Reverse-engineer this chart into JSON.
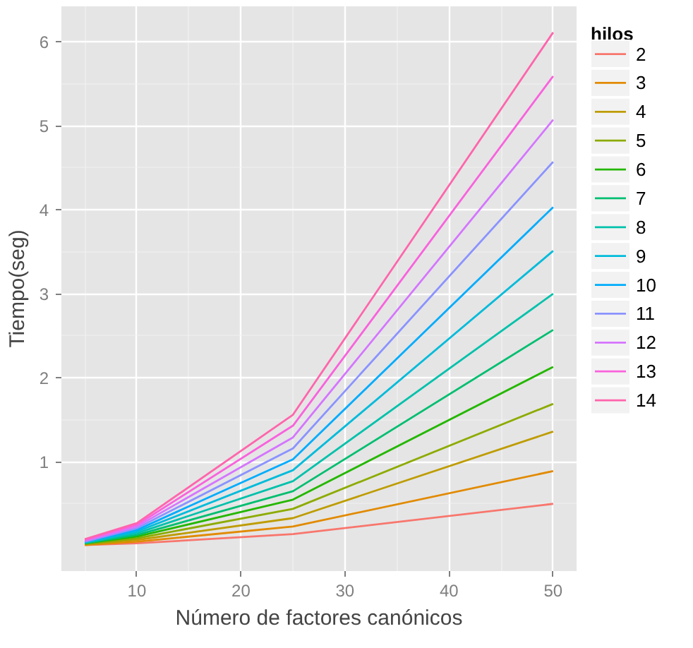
{
  "chart_data": {
    "type": "line",
    "xlabel": "Número de factores canónicos",
    "ylabel": "Tiempo(seg)",
    "legend_title": "hilos",
    "legend": "right",
    "grid": true,
    "x": [
      5,
      10,
      25,
      50
    ],
    "xlim": [
      2.75,
      52.25
    ],
    "xticks": [
      10,
      20,
      30,
      40,
      50
    ],
    "ylim": [
      -0.3,
      6.42
    ],
    "yticks": [
      1,
      2,
      3,
      4,
      5,
      6
    ],
    "series": [
      {
        "name": "2",
        "color": "#F8766D",
        "values": [
          0.01,
          0.03,
          0.14,
          0.5
        ]
      },
      {
        "name": "3",
        "color": "#E18A00",
        "values": [
          0.01,
          0.05,
          0.23,
          0.89
        ]
      },
      {
        "name": "4",
        "color": "#BE9C00",
        "values": [
          0.02,
          0.07,
          0.33,
          1.36
        ]
      },
      {
        "name": "5",
        "color": "#8CAB00",
        "values": [
          0.02,
          0.09,
          0.44,
          1.69
        ]
      },
      {
        "name": "6",
        "color": "#24B700",
        "values": [
          0.03,
          0.11,
          0.55,
          2.13
        ]
      },
      {
        "name": "7",
        "color": "#00BE70",
        "values": [
          0.03,
          0.13,
          0.65,
          2.57
        ]
      },
      {
        "name": "8",
        "color": "#00C1AB",
        "values": [
          0.04,
          0.15,
          0.77,
          3.0
        ]
      },
      {
        "name": "9",
        "color": "#00BBDA",
        "values": [
          0.04,
          0.17,
          0.9,
          3.51
        ]
      },
      {
        "name": "10",
        "color": "#00ACFC",
        "values": [
          0.05,
          0.19,
          1.03,
          4.03
        ]
      },
      {
        "name": "11",
        "color": "#8B93FF",
        "values": [
          0.05,
          0.21,
          1.16,
          4.57
        ]
      },
      {
        "name": "12",
        "color": "#D575FE",
        "values": [
          0.06,
          0.23,
          1.29,
          5.07
        ]
      },
      {
        "name": "13",
        "color": "#F962DD",
        "values": [
          0.07,
          0.25,
          1.43,
          5.59
        ]
      },
      {
        "name": "14",
        "color": "#FF65AC",
        "values": [
          0.08,
          0.27,
          1.56,
          6.11
        ]
      }
    ]
  }
}
